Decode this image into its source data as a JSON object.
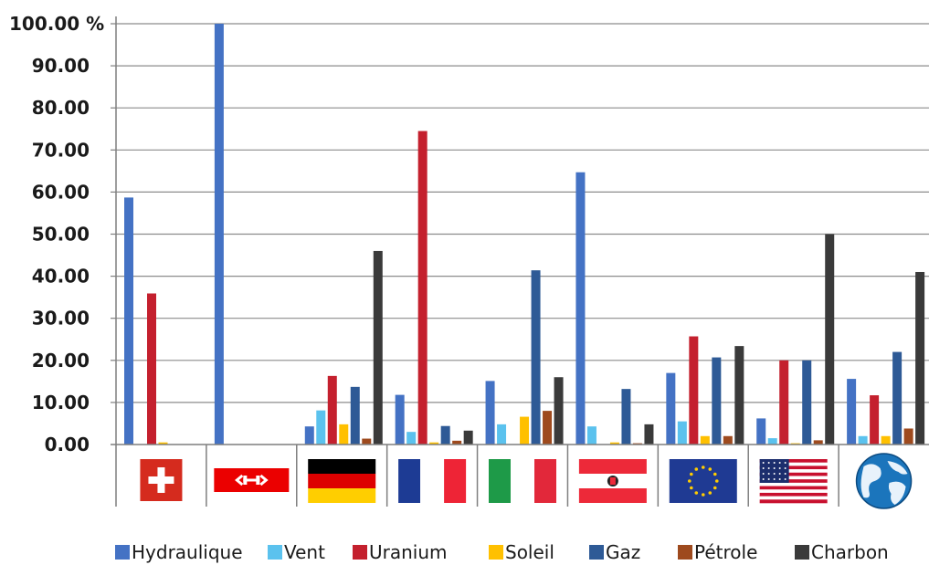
{
  "chart_data": {
    "type": "bar",
    "categories": [
      "Suisse",
      "CFF",
      "Allemagne",
      "France",
      "Italie",
      "Autriche",
      "Union européenne",
      "États-Unis",
      "Monde"
    ],
    "category_icons": [
      "swiss-flag-icon",
      "sbb-cff-logo-icon",
      "german-flag-icon",
      "french-flag-icon",
      "italian-flag-icon",
      "austrian-flag-icon",
      "eu-flag-icon",
      "us-flag-icon",
      "globe-icon"
    ],
    "series": [
      {
        "name": "Hydraulique",
        "color": "#4472c4",
        "values": [
          58.7,
          100,
          4.3,
          11.8,
          15.1,
          64.7,
          17.0,
          6.2,
          15.6
        ]
      },
      {
        "name": "Vent",
        "color": "#5bc2ee",
        "values": [
          0,
          0,
          8.1,
          3.0,
          4.8,
          4.3,
          5.5,
          1.5,
          2.0
        ]
      },
      {
        "name": "Uranium",
        "color": "#c4202e",
        "values": [
          35.9,
          0,
          16.3,
          74.5,
          0,
          0,
          25.7,
          20.0,
          11.7
        ]
      },
      {
        "name": "Soleil",
        "color": "#ffc000",
        "values": [
          0.5,
          0,
          4.8,
          0.5,
          6.6,
          0.5,
          2.0,
          0.3,
          2.0
        ]
      },
      {
        "name": "Gaz",
        "color": "#2e5a96",
        "values": [
          0,
          0,
          13.7,
          4.4,
          41.4,
          13.2,
          20.7,
          20.0,
          22.0
        ]
      },
      {
        "name": "Pétrole",
        "color": "#9e4a1e",
        "values": [
          0,
          0,
          1.4,
          0.9,
          8.0,
          0.3,
          2.0,
          1.0,
          3.8
        ]
      },
      {
        "name": "Charbon",
        "color": "#3a3a3a",
        "values": [
          0,
          0,
          46.0,
          3.3,
          16.0,
          4.8,
          23.4,
          50.0,
          41.0
        ]
      }
    ],
    "y_ticks": [
      "0.00",
      "10.00",
      "20.00",
      "30.00",
      "40.00",
      "50.00",
      "60.00",
      "70.00",
      "80.00",
      "90.00",
      "100.00 %"
    ],
    "ylim": [
      0,
      100
    ],
    "grid": true,
    "legend_position": "bottom"
  }
}
